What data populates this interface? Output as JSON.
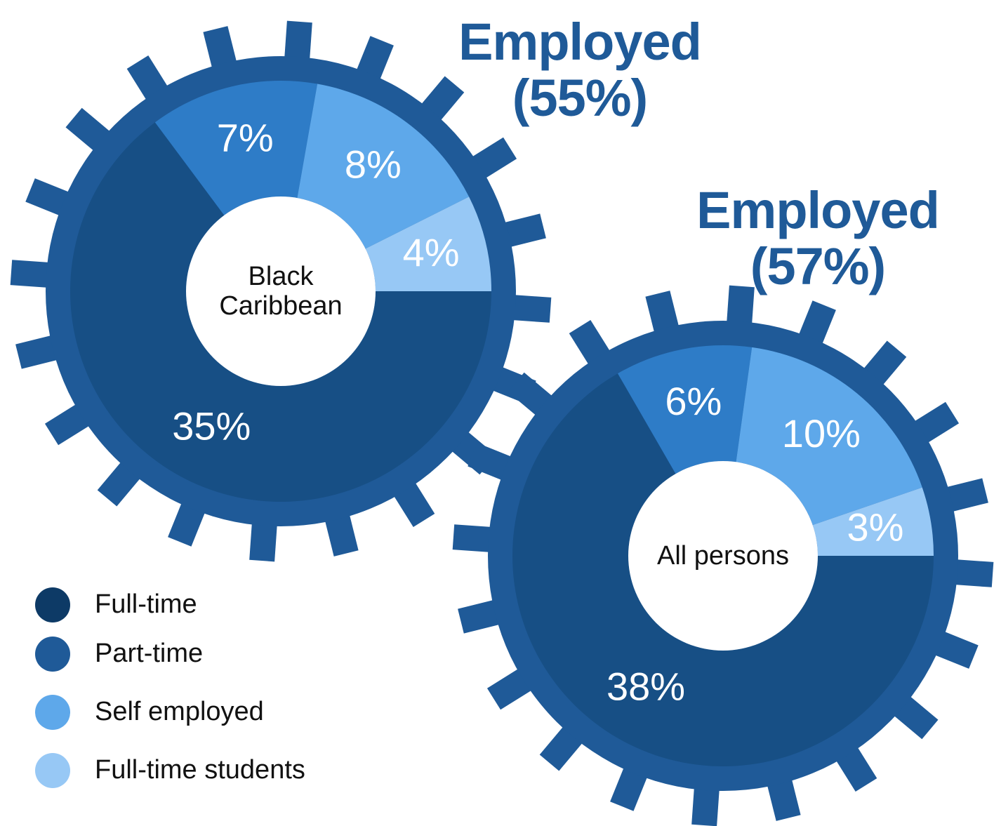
{
  "chart_data": [
    {
      "type": "pie",
      "title": "Employed (55%)",
      "center_label": "Black Caribbean",
      "values": [
        35,
        7,
        8,
        4
      ],
      "value_labels": [
        "35%",
        "7%",
        "8%",
        "4%"
      ],
      "colors": [
        "#174f85",
        "#2e7cc7",
        "#5ea8ea",
        "#97c8f5"
      ]
    },
    {
      "type": "pie",
      "title": "Employed (57%)",
      "center_label": "All persons",
      "values": [
        38,
        6,
        10,
        3
      ],
      "value_labels": [
        "38%",
        "6%",
        "10%",
        "3%"
      ],
      "colors": [
        "#174f85",
        "#2e7cc7",
        "#5ea8ea",
        "#97c8f5"
      ]
    }
  ],
  "legend": {
    "labels": [
      "Full-time",
      "Part-time",
      "Self employed",
      "Full-time students"
    ],
    "colors": [
      "#0d3a66",
      "#1f5a98",
      "#5ea8ea",
      "#97c8f5"
    ]
  }
}
